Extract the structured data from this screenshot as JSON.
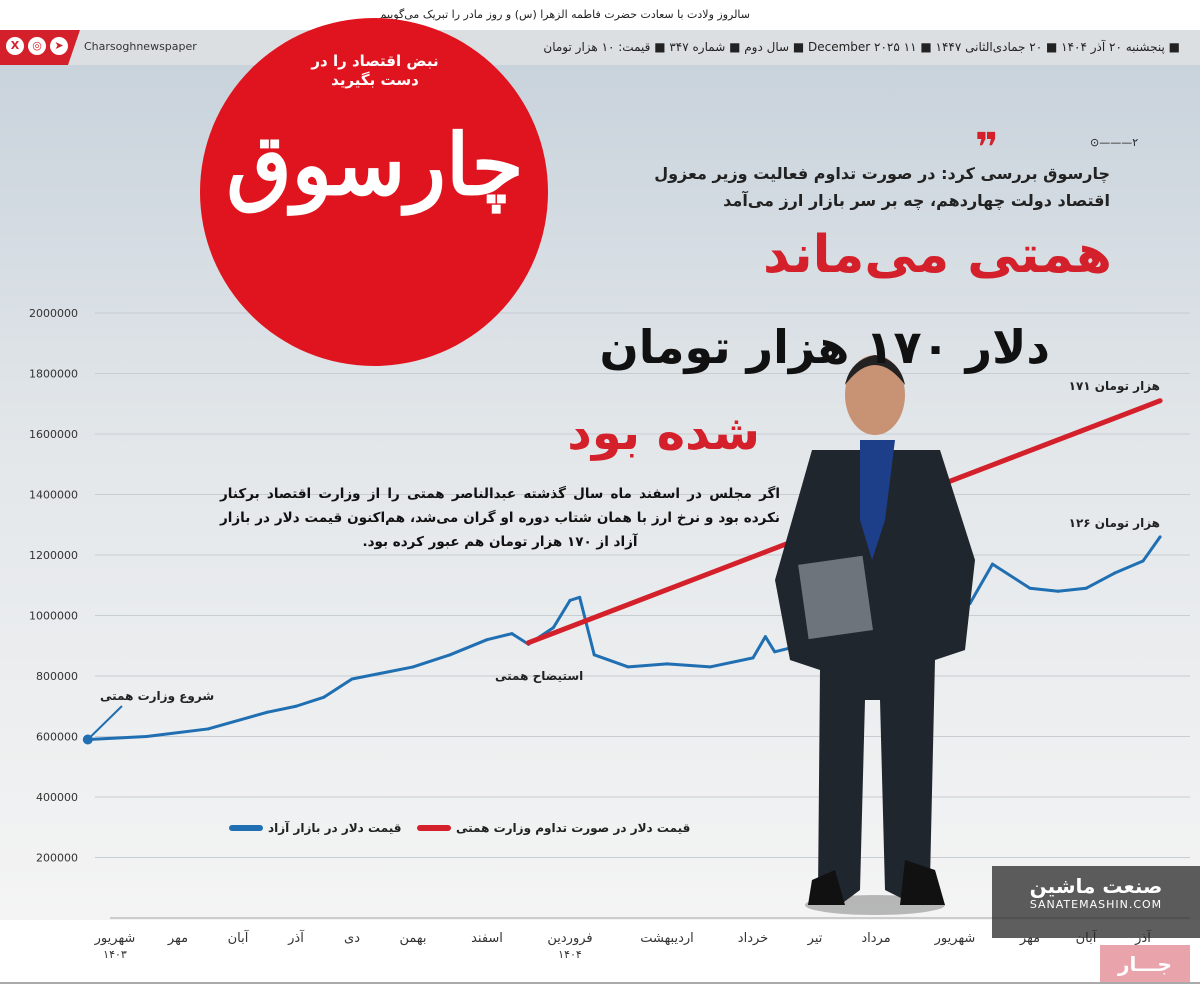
{
  "header": {
    "top_line": "سالروز ولادت با سعادت حضرت فاطمه الزهرا (س) و روز مادر را تبریک می‌گوییم",
    "date_info": "■ پنجشنبه ۲۰ آذر ۱۴۰۴ ■ ۲۰ جمادی‌الثانی ۱۴۴۷ ■ ۱۱ December ۲۰۲۵ ■ سال دوم ■ شماره ۳۴۷ ■ قیمت: ۱۰ هزار تومان",
    "social_handle": "Charsoghnewspaper",
    "social_icons": [
      "telegram-icon",
      "instagram-icon",
      "x-icon"
    ]
  },
  "logo": {
    "name": "چارسوق",
    "slogan": "نبض اقتصاد را در دست بگیرید",
    "color": "#e0141e"
  },
  "lead": {
    "page_ref": "۲",
    "text": "چارسوق بررسی کرد: در صورت تداوم فعالیت وزیر معزول اقتصاد دولت چهاردهم، چه بر سر بازار ارز می‌آمد"
  },
  "headline": {
    "line1": "همتی می‌ماند",
    "line2": "دلار ۱۷۰ هزار تومان",
    "line3": "شده بود"
  },
  "body": "اگر مجلس در اسفند ماه سال گذشته عبدالناصر همتی را از وزارت اقتصاد برکنار نکرده بود و نرخ ارز با همان شتاب دوره او گران می‌شد، هم‌اکنون قیمت دلار در بازار آزاد از ۱۷۰ هزار تومان هم عبور کرده بود.",
  "watermark": {
    "name": "صنعت ماشین",
    "url": "SANATEMASHIN.COM",
    "tag": "جـــار"
  },
  "chart_data": {
    "type": "line",
    "ylim": [
      0,
      2000000
    ],
    "yticks": [
      200000,
      400000,
      600000,
      800000,
      1000000,
      1200000,
      1400000,
      1600000,
      1800000,
      2000000
    ],
    "ytick_labels": [
      "200000",
      "400000",
      "600000",
      "800000",
      "1000000",
      "1200000",
      "1400000",
      "1600000",
      "1800000",
      "2000000"
    ],
    "categories": [
      "شهریور ۱۴۰۳",
      "مهر",
      "آبان",
      "آذر",
      "دی",
      "بهمن",
      "اسفند",
      "فروردین ۱۴۰۴",
      "اردیبهشت",
      "خرداد",
      "تیر",
      "مرداد",
      "شهریور",
      "مهر",
      "آبان",
      "آذر"
    ],
    "grid": true,
    "legend": "bottom-left",
    "series": [
      {
        "name": "قیمت دلار در بازار آزاد",
        "color": "#1f6fb2",
        "points": [
          [
            -0.4,
            590000
          ],
          [
            0.5,
            600000
          ],
          [
            1.5,
            625000
          ],
          [
            2.5,
            680000
          ],
          [
            3,
            700000
          ],
          [
            3.5,
            730000
          ],
          [
            4,
            790000
          ],
          [
            4.5,
            810000
          ],
          [
            5,
            830000
          ],
          [
            5.5,
            870000
          ],
          [
            6,
            920000
          ],
          [
            6.3,
            940000
          ],
          [
            6.5,
            905000
          ],
          [
            6.8,
            960000
          ],
          [
            7,
            1050000
          ],
          [
            7.1,
            1060000
          ],
          [
            7.25,
            870000
          ],
          [
            7.6,
            830000
          ],
          [
            8,
            840000
          ],
          [
            8.5,
            830000
          ],
          [
            9,
            860000
          ],
          [
            9.2,
            930000
          ],
          [
            9.35,
            880000
          ],
          [
            12.2,
            1040000
          ],
          [
            12.5,
            1170000
          ],
          [
            13,
            1090000
          ],
          [
            13.5,
            1080000
          ],
          [
            14,
            1090000
          ],
          [
            14.5,
            1140000
          ],
          [
            15,
            1180000
          ],
          [
            15.3,
            1260000
          ]
        ]
      },
      {
        "name": "قیمت دلار در صورت تداوم وزارت همتی",
        "color": "#d3202a",
        "points": [
          [
            6.5,
            910000
          ],
          [
            15.3,
            1710000
          ]
        ]
      }
    ],
    "annotations": [
      {
        "text": "شروع وزارت همتی",
        "x": -0.4,
        "y": 590000
      },
      {
        "text": "استیضاح همتی",
        "x": 6.5,
        "y": 905000
      },
      {
        "text": "۱۷۱ هزار تومان",
        "x": 15.3,
        "y": 1710000
      },
      {
        "text": "۱۲۶ هزار تومان",
        "x": 15.3,
        "y": 1260000
      }
    ]
  }
}
